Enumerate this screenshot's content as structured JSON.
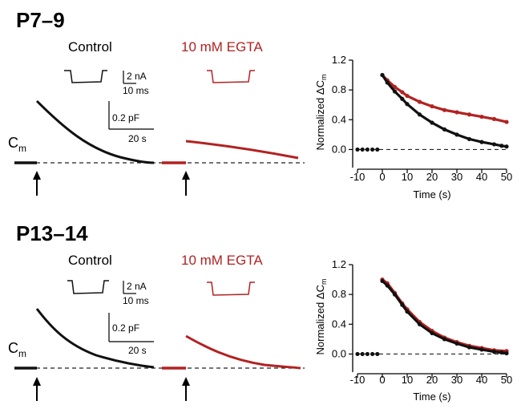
{
  "colors": {
    "control": "#111111",
    "egta": "#b22222",
    "baseline": "#222222"
  },
  "panels": [
    {
      "id": "p7",
      "title": "P7–9",
      "control_label": "Control",
      "egta_label": "10 mM EGTA",
      "cm_label": "C",
      "cm_sub": "m",
      "current_scale": "2 nA",
      "time_scale_ms": "10 ms",
      "cap_scale": "0.2 pF",
      "time_scale_s": "20 s"
    },
    {
      "id": "p13",
      "title": "P13–14",
      "control_label": "Control",
      "egta_label": "10 mM EGTA",
      "cm_label": "C",
      "cm_sub": "m",
      "current_scale": "2 nA",
      "time_scale_ms": "10 ms",
      "cap_scale": "0.2 pF",
      "time_scale_s": "20 s"
    }
  ],
  "chart_data": [
    {
      "type": "scatter",
      "panel": "P7–9",
      "title": "",
      "xlabel": "Time (s)",
      "ylabel": "Normalized ΔC",
      "ylabel_sub": "m",
      "xlim": [
        -10,
        50
      ],
      "ylim": [
        -0.2,
        1.2
      ],
      "xticks": [
        -10,
        0,
        10,
        20,
        30,
        40,
        50
      ],
      "yticks": [
        0.0,
        0.4,
        0.8,
        1.2
      ],
      "ytick_labels": [
        "0.0",
        "0.4",
        "0.8",
        "1.2"
      ],
      "reference_line": 0.0,
      "series": [
        {
          "name": "Control",
          "color": "#111111",
          "x": [
            -10,
            -8,
            -6,
            -4,
            -2,
            0,
            2,
            5,
            8,
            10,
            15,
            20,
            25,
            30,
            35,
            40,
            45,
            48,
            50
          ],
          "y": [
            0.0,
            0.0,
            0.0,
            0.0,
            0.0,
            1.0,
            0.9,
            0.78,
            0.68,
            0.61,
            0.47,
            0.36,
            0.27,
            0.2,
            0.14,
            0.1,
            0.07,
            0.05,
            0.04
          ]
        },
        {
          "name": "10 mM EGTA",
          "color": "#b22222",
          "x": [
            0,
            2,
            5,
            8,
            10,
            15,
            20,
            25,
            30,
            35,
            40,
            45,
            50
          ],
          "y": [
            1.0,
            0.93,
            0.84,
            0.77,
            0.72,
            0.64,
            0.58,
            0.53,
            0.5,
            0.47,
            0.44,
            0.41,
            0.37
          ]
        }
      ]
    },
    {
      "type": "scatter",
      "panel": "P13–14",
      "title": "",
      "xlabel": "Time (s)",
      "ylabel": "Normalized ΔC",
      "ylabel_sub": "m",
      "xlim": [
        -10,
        50
      ],
      "ylim": [
        -0.2,
        1.2
      ],
      "xticks": [
        -10,
        0,
        10,
        20,
        30,
        40,
        50
      ],
      "yticks": [
        0.0,
        0.4,
        0.8,
        1.2
      ],
      "ytick_labels": [
        "0.0",
        "0.4",
        "0.8",
        "1.2"
      ],
      "reference_line": 0.0,
      "series": [
        {
          "name": "Control",
          "color": "#111111",
          "x": [
            -10,
            -8,
            -6,
            -4,
            -2,
            0,
            2,
            5,
            8,
            10,
            15,
            20,
            25,
            30,
            35,
            40,
            45,
            48,
            50
          ],
          "y": [
            0.0,
            0.0,
            0.0,
            0.0,
            0.0,
            0.98,
            0.92,
            0.8,
            0.66,
            0.57,
            0.4,
            0.28,
            0.2,
            0.14,
            0.09,
            0.06,
            0.03,
            0.02,
            0.01
          ]
        },
        {
          "name": "10 mM EGTA",
          "color": "#b22222",
          "x": [
            0,
            2,
            5,
            8,
            10,
            15,
            20,
            25,
            30,
            35,
            40,
            45,
            50
          ],
          "y": [
            1.0,
            0.95,
            0.82,
            0.68,
            0.6,
            0.43,
            0.31,
            0.22,
            0.16,
            0.11,
            0.08,
            0.05,
            0.04
          ]
        }
      ]
    }
  ]
}
